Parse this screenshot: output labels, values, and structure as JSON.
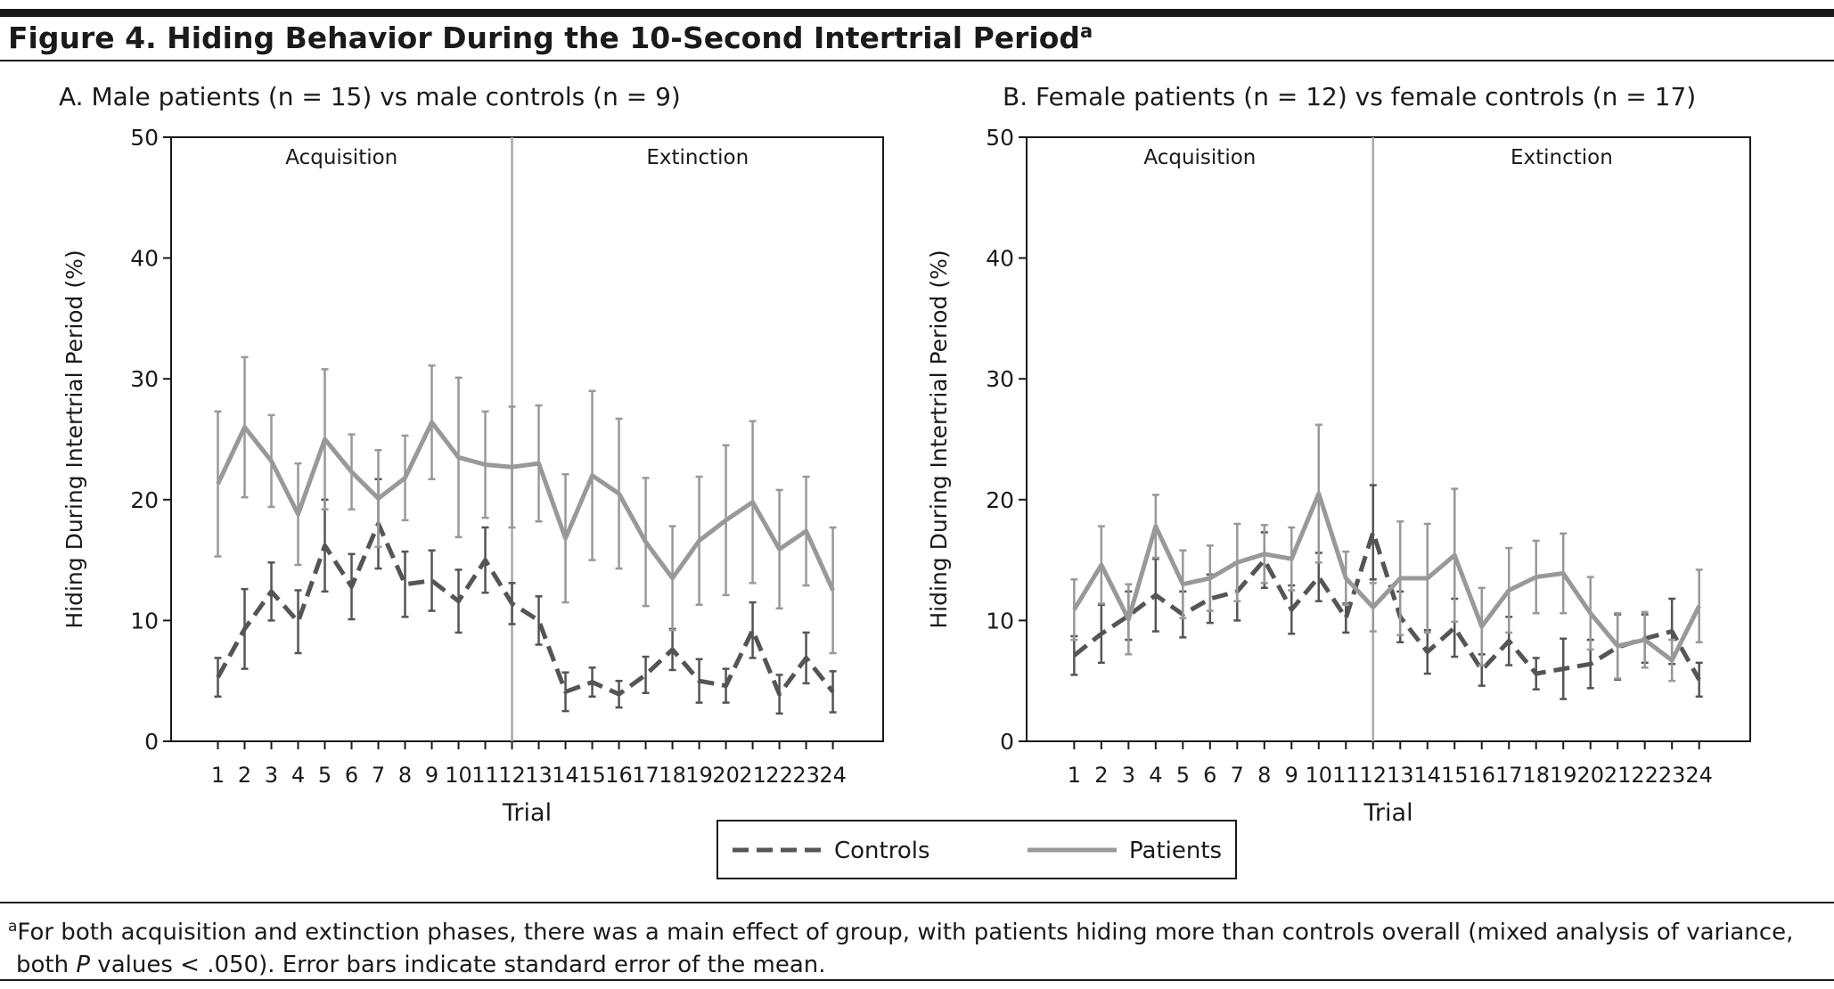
{
  "figure": {
    "title": "Figure 4. Hiding Behavior During the 10-Second Intertrial Period",
    "title_note": "a"
  },
  "legend": [
    {
      "name": "Controls",
      "color": "#555555",
      "dashed": true
    },
    {
      "name": "Patients",
      "color": "#999999",
      "dashed": false
    }
  ],
  "footnote": {
    "marker": "a",
    "line1": "For both acquisition and extinction phases, there was a main effect of group, with patients hiding more than controls overall (mixed analysis of variance,",
    "line2_before": "both ",
    "line2_italic": "P",
    "line2_after": " values < .050). Error bars indicate standard error of the mean."
  },
  "chart_data": [
    {
      "type": "line",
      "title": "A. Male patients (n = 15) vs male controls (n = 9)",
      "xlabel": "Trial",
      "ylabel": "Hiding During Intertrial Period (%)",
      "x": [
        1,
        2,
        3,
        4,
        5,
        6,
        7,
        8,
        9,
        10,
        11,
        12,
        13,
        14,
        15,
        16,
        17,
        18,
        19,
        20,
        21,
        22,
        23,
        24
      ],
      "xticks": [
        1,
        2,
        3,
        4,
        5,
        6,
        7,
        8,
        9,
        10,
        11,
        12,
        13,
        14,
        15,
        16,
        17,
        18,
        19,
        20,
        21,
        22,
        23,
        24
      ],
      "xlim": [
        -0.75,
        25.88
      ],
      "ylim": [
        0,
        50
      ],
      "yticks": [
        0,
        10,
        20,
        30,
        40,
        50
      ],
      "phase_divider": 12,
      "phases": [
        "Acquisition",
        "Extinction"
      ],
      "series": [
        {
          "color": "#555555",
          "dashed": true,
          "values": [
            5.3,
            9.3,
            12.4,
            9.9,
            16.2,
            12.8,
            18,
            13,
            13.3,
            11.6,
            15,
            11.4,
            10,
            4.1,
            4.9,
            3.9,
            5.5,
            7.6,
            5,
            4.6,
            9.2,
            3.9,
            6.9,
            4.1
          ],
          "errors": [
            1.6,
            3.3,
            2.4,
            2.6,
            3.8,
            2.7,
            3.7,
            2.7,
            2.5,
            2.6,
            2.7,
            1.7,
            2,
            1.6,
            1.2,
            1.1,
            1.5,
            1.7,
            1.8,
            1.4,
            2.3,
            1.6,
            2.1,
            1.7
          ]
        },
        {
          "color": "#999999",
          "dashed": false,
          "values": [
            21.3,
            26,
            23.2,
            18.8,
            25,
            22.3,
            20.1,
            21.8,
            26.4,
            23.5,
            22.9,
            22.7,
            23,
            16.8,
            22,
            20.5,
            16.5,
            13.5,
            16.6,
            18.3,
            19.8,
            15.9,
            17.4,
            12.5
          ],
          "errors": [
            6,
            5.8,
            3.8,
            4.2,
            5.8,
            3.1,
            4,
            3.5,
            4.7,
            6.6,
            4.4,
            5,
            4.8,
            5.3,
            7,
            6.2,
            5.3,
            4.3,
            5.3,
            6.2,
            6.7,
            4.9,
            4.5,
            5.2
          ]
        }
      ]
    },
    {
      "type": "line",
      "title": "B. Female patients (n = 12) vs female controls (n = 17)",
      "xlabel": "Trial",
      "ylabel": "Hiding During Intertrial Period (%)",
      "x": [
        1,
        2,
        3,
        4,
        5,
        6,
        7,
        8,
        9,
        10,
        11,
        12,
        13,
        14,
        15,
        16,
        17,
        18,
        19,
        20,
        21,
        22,
        23,
        24
      ],
      "xticks": [
        1,
        2,
        3,
        4,
        5,
        6,
        7,
        8,
        9,
        10,
        11,
        12,
        13,
        14,
        15,
        16,
        17,
        18,
        19,
        20,
        21,
        22,
        23,
        24
      ],
      "xlim": [
        -0.75,
        25.88
      ],
      "ylim": [
        0,
        50
      ],
      "yticks": [
        0,
        10,
        20,
        30,
        40,
        50
      ],
      "phase_divider": 12,
      "phases": [
        "Acquisition",
        "Extinction"
      ],
      "series": [
        {
          "color": "#555555",
          "dashed": true,
          "values": [
            7.1,
            8.9,
            10.4,
            12.1,
            10.5,
            11.8,
            12.4,
            15,
            10.9,
            13.6,
            10.2,
            17.3,
            10.3,
            7.4,
            9.4,
            5.9,
            8.3,
            5.6,
            6,
            6.4,
            7.8,
            8.5,
            9.1,
            5.1
          ],
          "errors": [
            1.6,
            2.4,
            2,
            3,
            1.9,
            2,
            2.4,
            2.3,
            2,
            2,
            1.2,
            3.9,
            2.1,
            1.8,
            2.4,
            1.3,
            2,
            1.3,
            2.5,
            2,
            2.7,
            2,
            2.7,
            1.4
          ]
        },
        {
          "color": "#999999",
          "dashed": false,
          "values": [
            10.9,
            14.6,
            10.1,
            17.8,
            13,
            13.5,
            14.8,
            15.5,
            15.1,
            20.5,
            13.5,
            11.1,
            13.5,
            13.5,
            15.4,
            9.5,
            12.5,
            13.6,
            13.9,
            10.6,
            7.9,
            8.4,
            6.7,
            11.2
          ],
          "errors": [
            2.5,
            3.2,
            2.9,
            2.6,
            2.8,
            2.7,
            3.2,
            2.4,
            2.6,
            5.7,
            2.2,
            2,
            4.7,
            4.5,
            5.5,
            3.2,
            3.5,
            3,
            3.3,
            3,
            2.7,
            2.3,
            1.7,
            3
          ]
        }
      ]
    }
  ]
}
